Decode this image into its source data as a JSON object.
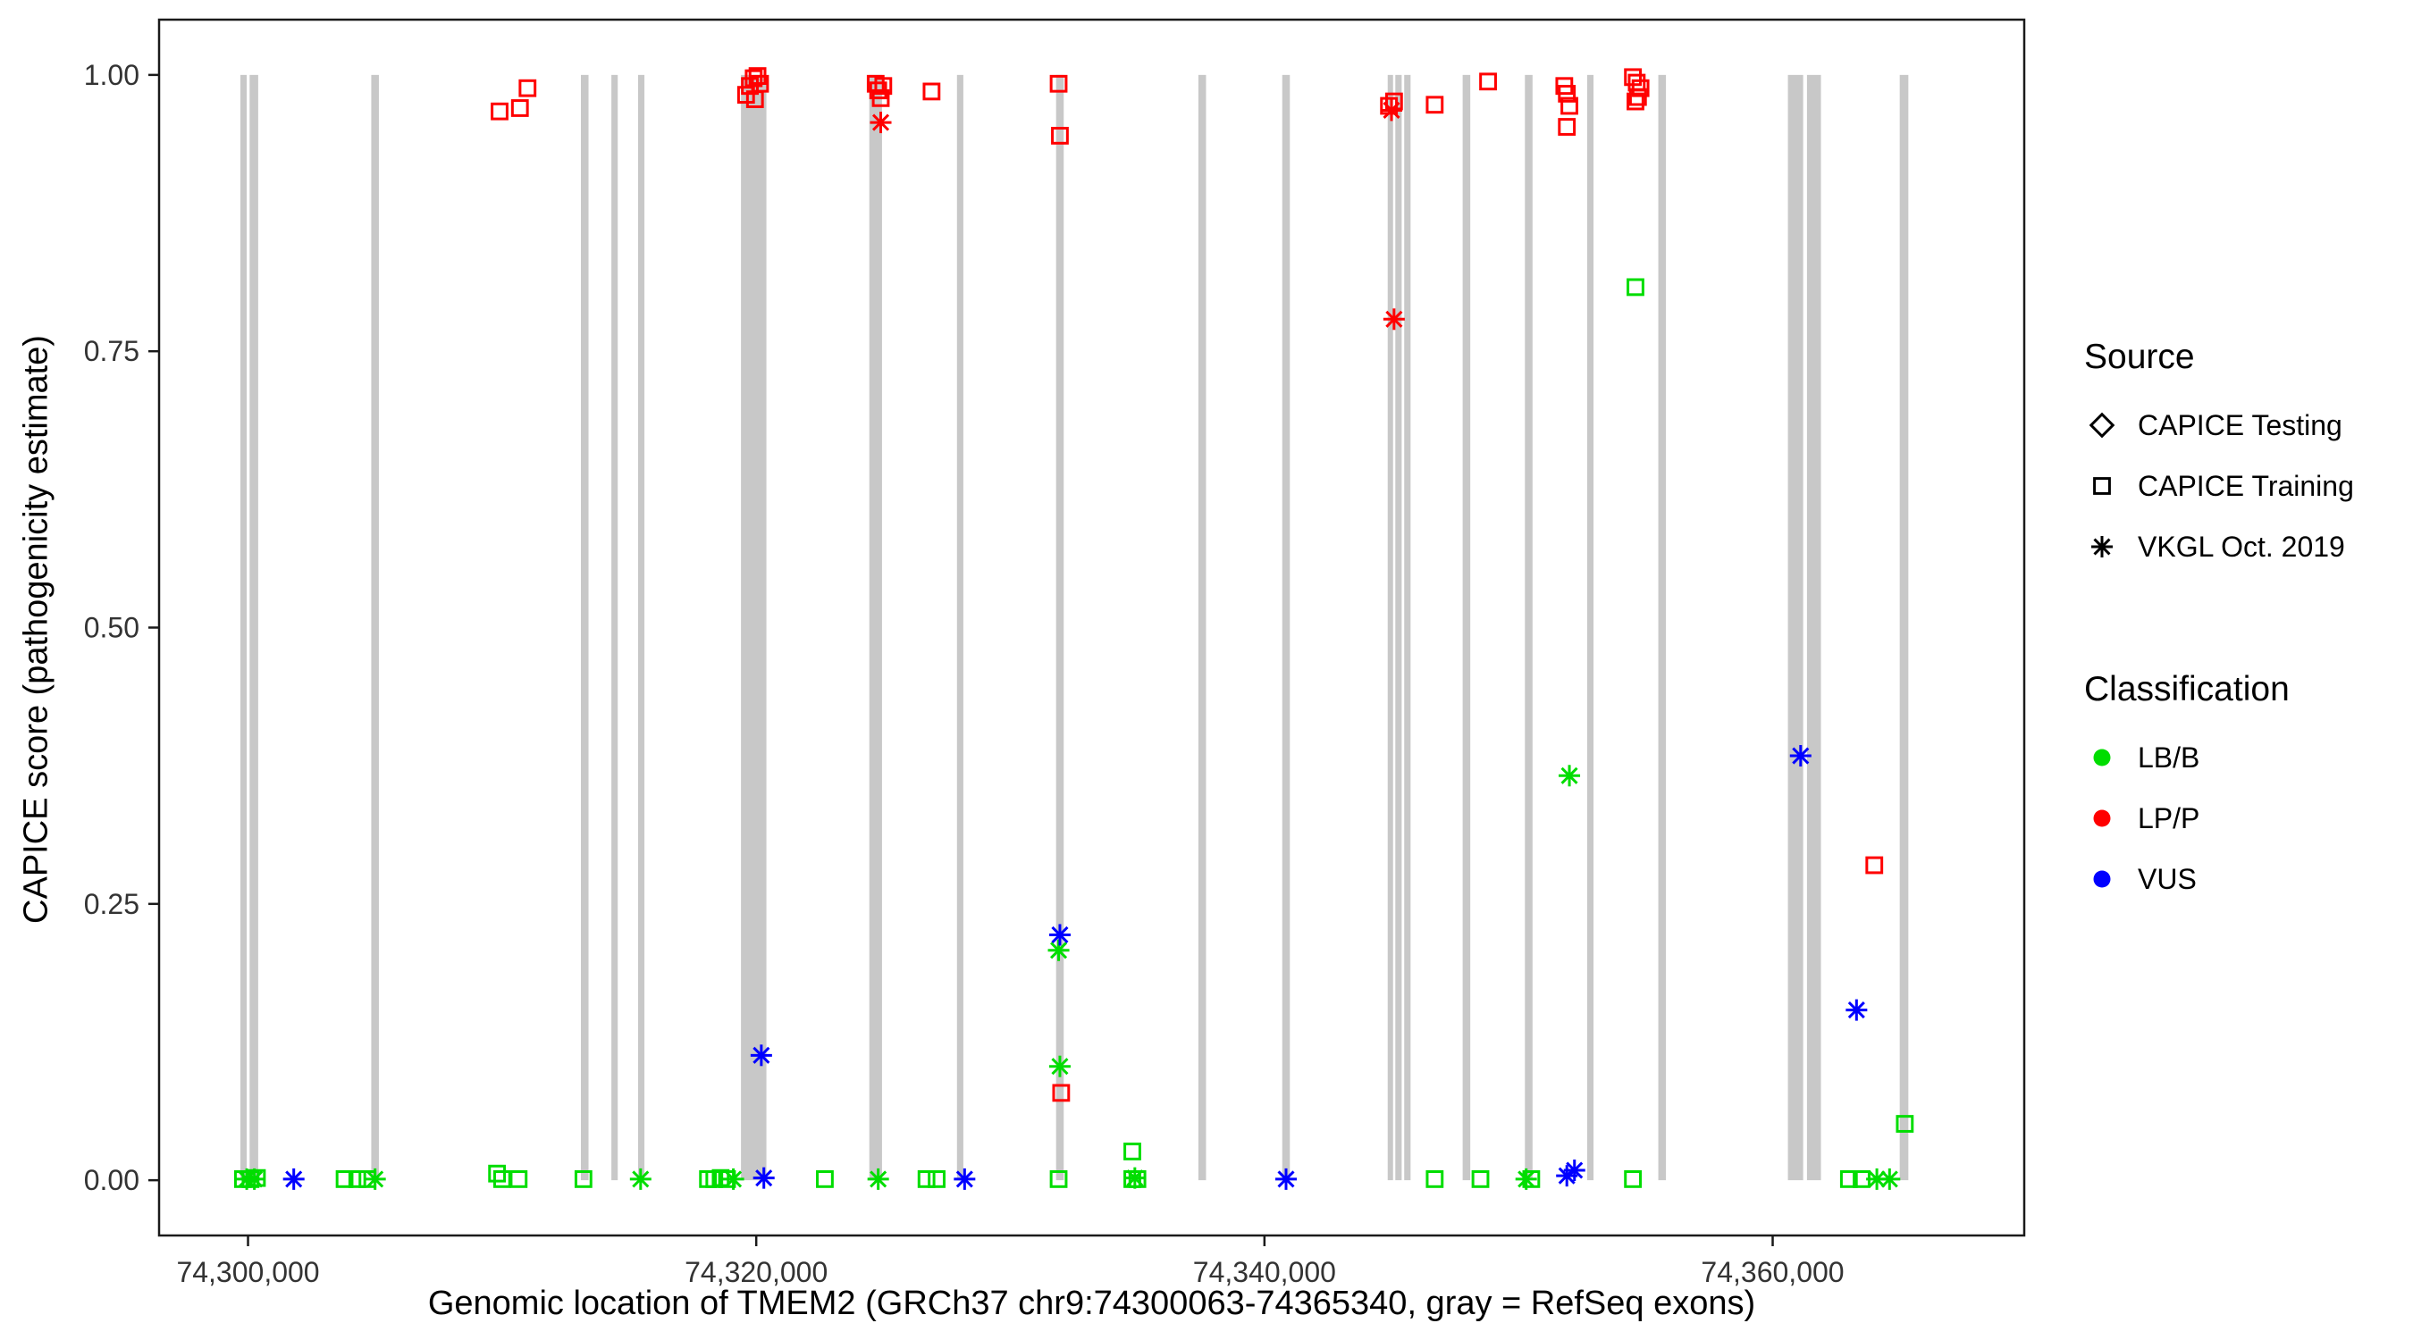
{
  "legend": {
    "source": {
      "title": "Source",
      "items": [
        {
          "label": "CAPICE Testing",
          "marker": "diamond"
        },
        {
          "label": "CAPICE Training",
          "marker": "square"
        },
        {
          "label": "VKGL Oct. 2019",
          "marker": "asterisk"
        }
      ]
    },
    "classification": {
      "title": "Classification",
      "items": [
        {
          "label": "LB/B",
          "class": "LB/B"
        },
        {
          "label": "LP/P",
          "class": "LP/P"
        },
        {
          "label": "VUS",
          "class": "VUS"
        }
      ]
    }
  },
  "chart_data": {
    "type": "scatter",
    "title": "",
    "xlabel": "Genomic location of TMEM2 (GRCh37 chr9:74300063-74365340, gray = RefSeq exons)",
    "ylabel": "CAPICE score (pathogenicity estimate)",
    "xlim": [
      74296500,
      74369900
    ],
    "ylim": [
      -0.05,
      1.05
    ],
    "grid": false,
    "legend_position": "right",
    "x_ticks": [
      {
        "value": 74300000,
        "label": "74,300,000"
      },
      {
        "value": 74320000,
        "label": "74,320,000"
      },
      {
        "value": 74340000,
        "label": "74,340,000"
      },
      {
        "value": 74360000,
        "label": "74,360,000"
      }
    ],
    "y_ticks": [
      {
        "value": 0.0,
        "label": "0.00"
      },
      {
        "value": 0.25,
        "label": "0.25"
      },
      {
        "value": 0.5,
        "label": "0.50"
      },
      {
        "value": 0.75,
        "label": "0.75"
      },
      {
        "value": 1.0,
        "label": "1.00"
      }
    ],
    "exon_color": "#c8c8c8",
    "exons": [
      [
        74299700,
        74299950
      ],
      [
        74300063,
        74300400
      ],
      [
        74304850,
        74305150
      ],
      [
        74313100,
        74313400
      ],
      [
        74314300,
        74314550
      ],
      [
        74315350,
        74315600
      ],
      [
        74319400,
        74320400
      ],
      [
        74324450,
        74324950
      ],
      [
        74327900,
        74328150
      ],
      [
        74331800,
        74332100
      ],
      [
        74337400,
        74337700
      ],
      [
        74340700,
        74341000
      ],
      [
        74344850,
        74345050
      ],
      [
        74345150,
        74345400
      ],
      [
        74345500,
        74345750
      ],
      [
        74347800,
        74348100
      ],
      [
        74350250,
        74350550
      ],
      [
        74352700,
        74352950
      ],
      [
        74355500,
        74355800
      ],
      [
        74360600,
        74361200
      ],
      [
        74361350,
        74361900
      ],
      [
        74365000,
        74365340
      ]
    ],
    "shape_by_source": {
      "Testing": "diamond",
      "Training": "square",
      "VKGL": "asterisk"
    },
    "color_by_class": {
      "LB/B": "#00dd00",
      "LP/P": "#ff0000",
      "VUS": "#0000ff"
    },
    "points": [
      {
        "x": 74309900,
        "y": 0.967,
        "source": "Training",
        "class": "LP/P"
      },
      {
        "x": 74310700,
        "y": 0.97,
        "source": "Training",
        "class": "LP/P"
      },
      {
        "x": 74311000,
        "y": 0.988,
        "source": "Training",
        "class": "LP/P"
      },
      {
        "x": 74319600,
        "y": 0.982,
        "source": "Training",
        "class": "LP/P"
      },
      {
        "x": 74319750,
        "y": 0.99,
        "source": "Training",
        "class": "LP/P"
      },
      {
        "x": 74319900,
        "y": 0.997,
        "source": "Training",
        "class": "LP/P"
      },
      {
        "x": 74320050,
        "y": 0.999,
        "source": "Training",
        "class": "LP/P"
      },
      {
        "x": 74320150,
        "y": 0.992,
        "source": "Training",
        "class": "LP/P"
      },
      {
        "x": 74319950,
        "y": 0.978,
        "source": "Training",
        "class": "LP/P"
      },
      {
        "x": 74324700,
        "y": 0.992,
        "source": "Training",
        "class": "LP/P"
      },
      {
        "x": 74324800,
        "y": 0.986,
        "source": "Training",
        "class": "LP/P"
      },
      {
        "x": 74324900,
        "y": 0.979,
        "source": "Training",
        "class": "LP/P"
      },
      {
        "x": 74325000,
        "y": 0.99,
        "source": "Training",
        "class": "LP/P"
      },
      {
        "x": 74324900,
        "y": 0.957,
        "source": "VKGL",
        "class": "LP/P"
      },
      {
        "x": 74326900,
        "y": 0.985,
        "source": "Training",
        "class": "LP/P"
      },
      {
        "x": 74331900,
        "y": 0.992,
        "source": "Training",
        "class": "LP/P"
      },
      {
        "x": 74331950,
        "y": 0.945,
        "source": "Training",
        "class": "LP/P"
      },
      {
        "x": 74332000,
        "y": 0.079,
        "source": "Training",
        "class": "LP/P"
      },
      {
        "x": 74344900,
        "y": 0.972,
        "source": "Training",
        "class": "LP/P"
      },
      {
        "x": 74345100,
        "y": 0.976,
        "source": "Training",
        "class": "LP/P"
      },
      {
        "x": 74345000,
        "y": 0.968,
        "source": "VKGL",
        "class": "LP/P"
      },
      {
        "x": 74345100,
        "y": 0.779,
        "source": "VKGL",
        "class": "LP/P"
      },
      {
        "x": 74346700,
        "y": 0.973,
        "source": "Training",
        "class": "LP/P"
      },
      {
        "x": 74348800,
        "y": 0.994,
        "source": "Training",
        "class": "LP/P"
      },
      {
        "x": 74351800,
        "y": 0.99,
        "source": "Training",
        "class": "LP/P"
      },
      {
        "x": 74351900,
        "y": 0.983,
        "source": "Training",
        "class": "LP/P"
      },
      {
        "x": 74352000,
        "y": 0.972,
        "source": "Training",
        "class": "LP/P"
      },
      {
        "x": 74351900,
        "y": 0.953,
        "source": "Training",
        "class": "LP/P"
      },
      {
        "x": 74354500,
        "y": 0.998,
        "source": "Training",
        "class": "LP/P"
      },
      {
        "x": 74354650,
        "y": 0.993,
        "source": "Training",
        "class": "LP/P"
      },
      {
        "x": 74354800,
        "y": 0.988,
        "source": "Training",
        "class": "LP/P"
      },
      {
        "x": 74354700,
        "y": 0.98,
        "source": "Training",
        "class": "LP/P"
      },
      {
        "x": 74354600,
        "y": 0.976,
        "source": "Training",
        "class": "LP/P"
      },
      {
        "x": 74364000,
        "y": 0.285,
        "source": "Training",
        "class": "LP/P"
      },
      {
        "x": 74354600,
        "y": 0.808,
        "source": "Training",
        "class": "LB/B"
      },
      {
        "x": 74352000,
        "y": 0.366,
        "source": "VKGL",
        "class": "LB/B"
      },
      {
        "x": 74331900,
        "y": 0.208,
        "source": "VKGL",
        "class": "LB/B"
      },
      {
        "x": 74331950,
        "y": 0.103,
        "source": "VKGL",
        "class": "LB/B"
      },
      {
        "x": 74334800,
        "y": 0.026,
        "source": "Training",
        "class": "LB/B"
      },
      {
        "x": 74365200,
        "y": 0.051,
        "source": "Training",
        "class": "LB/B"
      },
      {
        "x": 74299800,
        "y": 0.001,
        "source": "Training",
        "class": "LB/B"
      },
      {
        "x": 74299950,
        "y": 0.001,
        "source": "VKGL",
        "class": "LB/B"
      },
      {
        "x": 74300100,
        "y": 0.001,
        "source": "Training",
        "class": "LB/B"
      },
      {
        "x": 74300250,
        "y": 0.001,
        "source": "VKGL",
        "class": "LB/B"
      },
      {
        "x": 74300350,
        "y": 0.002,
        "source": "Training",
        "class": "LB/B"
      },
      {
        "x": 74303800,
        "y": 0.001,
        "source": "Training",
        "class": "LB/B"
      },
      {
        "x": 74304300,
        "y": 0.001,
        "source": "Training",
        "class": "LB/B"
      },
      {
        "x": 74304700,
        "y": 0.001,
        "source": "Training",
        "class": "LB/B"
      },
      {
        "x": 74305000,
        "y": 0.001,
        "source": "VKGL",
        "class": "LB/B"
      },
      {
        "x": 74309800,
        "y": 0.006,
        "source": "Training",
        "class": "LB/B"
      },
      {
        "x": 74310000,
        "y": 0.001,
        "source": "Training",
        "class": "LB/B"
      },
      {
        "x": 74310650,
        "y": 0.001,
        "source": "Training",
        "class": "LB/B"
      },
      {
        "x": 74313200,
        "y": 0.001,
        "source": "Training",
        "class": "LB/B"
      },
      {
        "x": 74315450,
        "y": 0.001,
        "source": "VKGL",
        "class": "LB/B"
      },
      {
        "x": 74318100,
        "y": 0.001,
        "source": "Training",
        "class": "LB/B"
      },
      {
        "x": 74318350,
        "y": 0.001,
        "source": "Training",
        "class": "LB/B"
      },
      {
        "x": 74318600,
        "y": 0.002,
        "source": "Training",
        "class": "LB/B"
      },
      {
        "x": 74318850,
        "y": 0.001,
        "source": "Training",
        "class": "LB/B"
      },
      {
        "x": 74319100,
        "y": 0.001,
        "source": "VKGL",
        "class": "LB/B"
      },
      {
        "x": 74322700,
        "y": 0.001,
        "source": "Training",
        "class": "LB/B"
      },
      {
        "x": 74324800,
        "y": 0.001,
        "source": "VKGL",
        "class": "LB/B"
      },
      {
        "x": 74326700,
        "y": 0.001,
        "source": "Training",
        "class": "LB/B"
      },
      {
        "x": 74327100,
        "y": 0.001,
        "source": "Training",
        "class": "LB/B"
      },
      {
        "x": 74331900,
        "y": 0.001,
        "source": "Training",
        "class": "LB/B"
      },
      {
        "x": 74334800,
        "y": 0.001,
        "source": "Training",
        "class": "LB/B"
      },
      {
        "x": 74335000,
        "y": 0.001,
        "source": "Training",
        "class": "LB/B"
      },
      {
        "x": 74334900,
        "y": 0.002,
        "source": "VKGL",
        "class": "LB/B"
      },
      {
        "x": 74346700,
        "y": 0.001,
        "source": "Training",
        "class": "LB/B"
      },
      {
        "x": 74348500,
        "y": 0.001,
        "source": "Training",
        "class": "LB/B"
      },
      {
        "x": 74350300,
        "y": 0.001,
        "source": "VKGL",
        "class": "LB/B"
      },
      {
        "x": 74350500,
        "y": 0.001,
        "source": "Training",
        "class": "LB/B"
      },
      {
        "x": 74354500,
        "y": 0.001,
        "source": "Training",
        "class": "LB/B"
      },
      {
        "x": 74363000,
        "y": 0.001,
        "source": "Training",
        "class": "LB/B"
      },
      {
        "x": 74363500,
        "y": 0.001,
        "source": "Training",
        "class": "LB/B"
      },
      {
        "x": 74364100,
        "y": 0.001,
        "source": "VKGL",
        "class": "LB/B"
      },
      {
        "x": 74364600,
        "y": 0.001,
        "source": "VKGL",
        "class": "LB/B"
      },
      {
        "x": 74301800,
        "y": 0.001,
        "source": "VKGL",
        "class": "VUS"
      },
      {
        "x": 74320200,
        "y": 0.113,
        "source": "VKGL",
        "class": "VUS"
      },
      {
        "x": 74320300,
        "y": 0.002,
        "source": "VKGL",
        "class": "VUS"
      },
      {
        "x": 74328200,
        "y": 0.001,
        "source": "VKGL",
        "class": "VUS"
      },
      {
        "x": 74331950,
        "y": 0.222,
        "source": "VKGL",
        "class": "VUS"
      },
      {
        "x": 74340850,
        "y": 0.001,
        "source": "VKGL",
        "class": "VUS"
      },
      {
        "x": 74351900,
        "y": 0.004,
        "source": "VKGL",
        "class": "VUS"
      },
      {
        "x": 74352200,
        "y": 0.009,
        "source": "VKGL",
        "class": "VUS"
      },
      {
        "x": 74361100,
        "y": 0.384,
        "source": "VKGL",
        "class": "VUS"
      },
      {
        "x": 74363300,
        "y": 0.154,
        "source": "VKGL",
        "class": "VUS"
      }
    ]
  }
}
